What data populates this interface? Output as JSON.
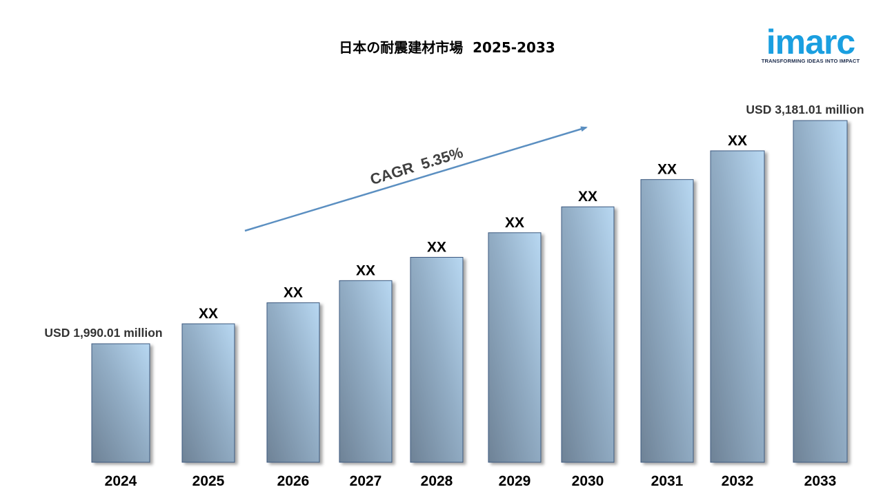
{
  "logo": {
    "wordmark": "imarc",
    "tagline": "TRANSFORMING IDEAS INTO IMPACT",
    "color": "#1a9fe0"
  },
  "chart_data": {
    "type": "bar",
    "title": "日本の耐震建材市場  2025-2033",
    "categories": [
      "2024",
      "2025",
      "2026",
      "2027",
      "2028",
      "2029",
      "2030",
      "2031",
      "2032",
      "2033"
    ],
    "values": [
      1990.01,
      2096.5,
      2208.7,
      2326.9,
      2451.3,
      2582.5,
      2720.7,
      2866.2,
      3019.5,
      3181.01
    ],
    "data_labels": [
      "USD 1,990.01 million",
      "XX",
      "XX",
      "XX",
      "XX",
      "XX",
      "XX",
      "XX",
      "XX",
      "USD  3,181.01 million"
    ],
    "unit": "USD million",
    "cagr_label": "CAGR  5.35%",
    "bar_color_light": "#b8d8f2",
    "bar_color_dark": "#6e8296",
    "arrow_color": "#5b8fc1",
    "grid": false,
    "legend": "none"
  }
}
